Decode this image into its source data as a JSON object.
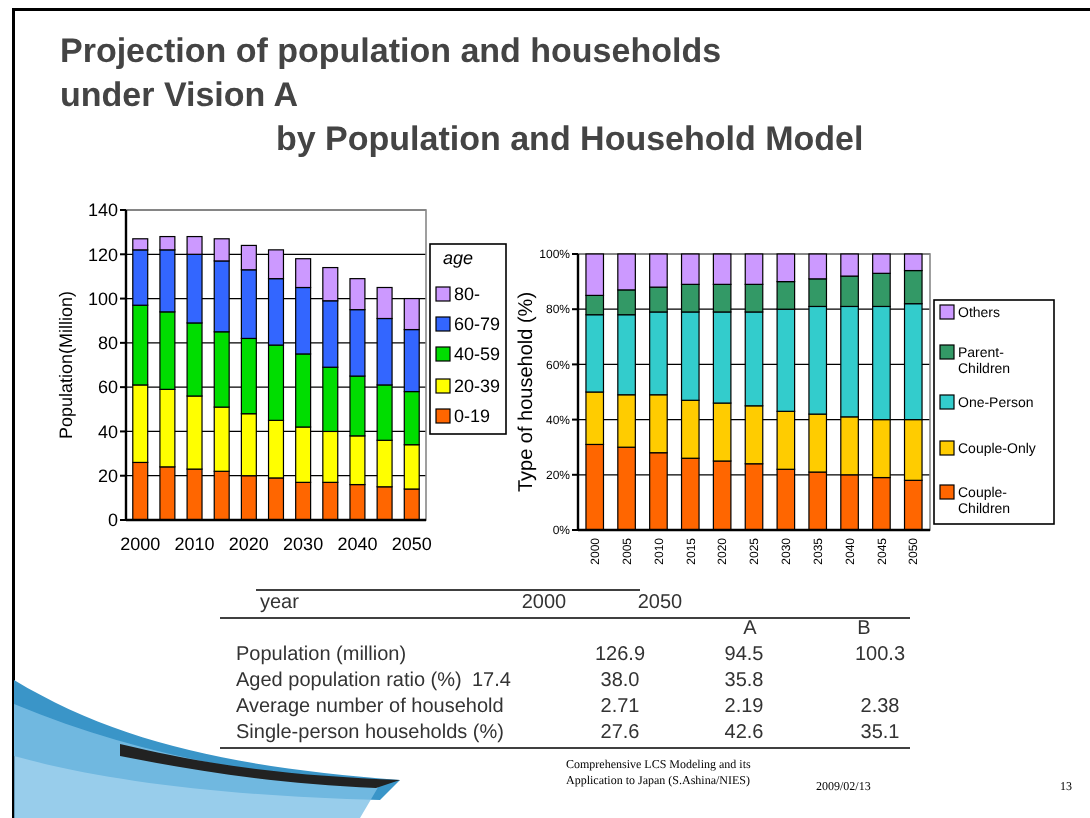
{
  "chart_data": [
    {
      "type": "bar",
      "title": "Projection of population and households\nunder Vision A\nby Population and Household Model",
      "ylabel": "Population(Million)",
      "legend_title": "age",
      "stacked": true,
      "grid": "y",
      "legend": "right",
      "categories": [
        "2000",
        null,
        "2010",
        null,
        "2020",
        null,
        "2030",
        null,
        "2040",
        null,
        "2050"
      ],
      "ylim": [
        0,
        140
      ],
      "yticks": [
        0,
        20,
        40,
        60,
        80,
        100,
        120,
        140
      ],
      "series": [
        {
          "name": "0-19",
          "color": "#ff6600",
          "values": [
            26,
            24,
            23,
            22,
            20,
            19,
            17,
            17,
            16,
            15,
            14
          ]
        },
        {
          "name": "20-39",
          "color": "#ffff00",
          "values": [
            35,
            35,
            33,
            29,
            28,
            26,
            25,
            23,
            22,
            21,
            20
          ]
        },
        {
          "name": "40-59",
          "color": "#00dd00",
          "values": [
            36,
            35,
            33,
            34,
            34,
            34,
            33,
            29,
            27,
            25,
            24
          ]
        },
        {
          "name": "60-79",
          "color": "#3366ff",
          "values": [
            25,
            28,
            31,
            32,
            31,
            30,
            30,
            30,
            30,
            30,
            28
          ]
        },
        {
          "name": "80-",
          "color": "#cc99ff",
          "values": [
            5,
            6,
            8,
            10,
            11,
            13,
            13,
            15,
            14,
            14,
            14
          ]
        }
      ]
    },
    {
      "type": "bar",
      "ylabel": "Type of household (%)",
      "stacked": true,
      "grid": "y",
      "legend": "right",
      "categories": [
        "2000",
        "2005",
        "2010",
        "2015",
        "2020",
        "2025",
        "2030",
        "2035",
        "2040",
        "2045",
        "2050"
      ],
      "ylim": [
        0,
        100
      ],
      "yticks": [
        {
          "value": 0,
          "label": "0%"
        },
        {
          "value": 20,
          "label": "20%"
        },
        {
          "value": 40,
          "label": "40%"
        },
        {
          "value": 60,
          "label": "60%"
        },
        {
          "value": 80,
          "label": "80%"
        },
        {
          "value": 100,
          "label": "100%"
        }
      ],
      "series": [
        {
          "name": "Couple-Children",
          "color": "#ff6600",
          "values": [
            31,
            30,
            28,
            26,
            25,
            24,
            22,
            21,
            20,
            19,
            18
          ]
        },
        {
          "name": "Couple-Only",
          "color": "#ffcc00",
          "values": [
            19,
            19,
            21,
            21,
            21,
            21,
            21,
            21,
            21,
            21,
            22
          ]
        },
        {
          "name": "One-Person",
          "color": "#33cccc",
          "values": [
            28,
            29,
            30,
            32,
            33,
            34,
            37,
            39,
            40,
            41,
            42
          ]
        },
        {
          "name": "Parent-Children",
          "color": "#339966",
          "values": [
            7,
            9,
            9,
            10,
            10,
            10,
            10,
            10,
            11,
            12,
            12
          ]
        },
        {
          "name": "Others",
          "color": "#cc99ff",
          "values": [
            15,
            13,
            12,
            11,
            11,
            11,
            10,
            9,
            8,
            7,
            6
          ]
        }
      ]
    },
    {
      "type": "other",
      "annotations": [
        "year  2000  2050",
        "A  B",
        "Population (million)  126.9  94.5  100.3",
        "Aged population ratio (%)  17.4  38.0  35.8",
        "Average number of household  2.71  2.19  2.38",
        "Single-person households (%)  27.6  42.6  35.1",
        "Comprehensive LCS Modeling and its\nApplication to Japan (S.Ashina/NIES)",
        "2009/02/13",
        "13"
      ]
    }
  ]
}
